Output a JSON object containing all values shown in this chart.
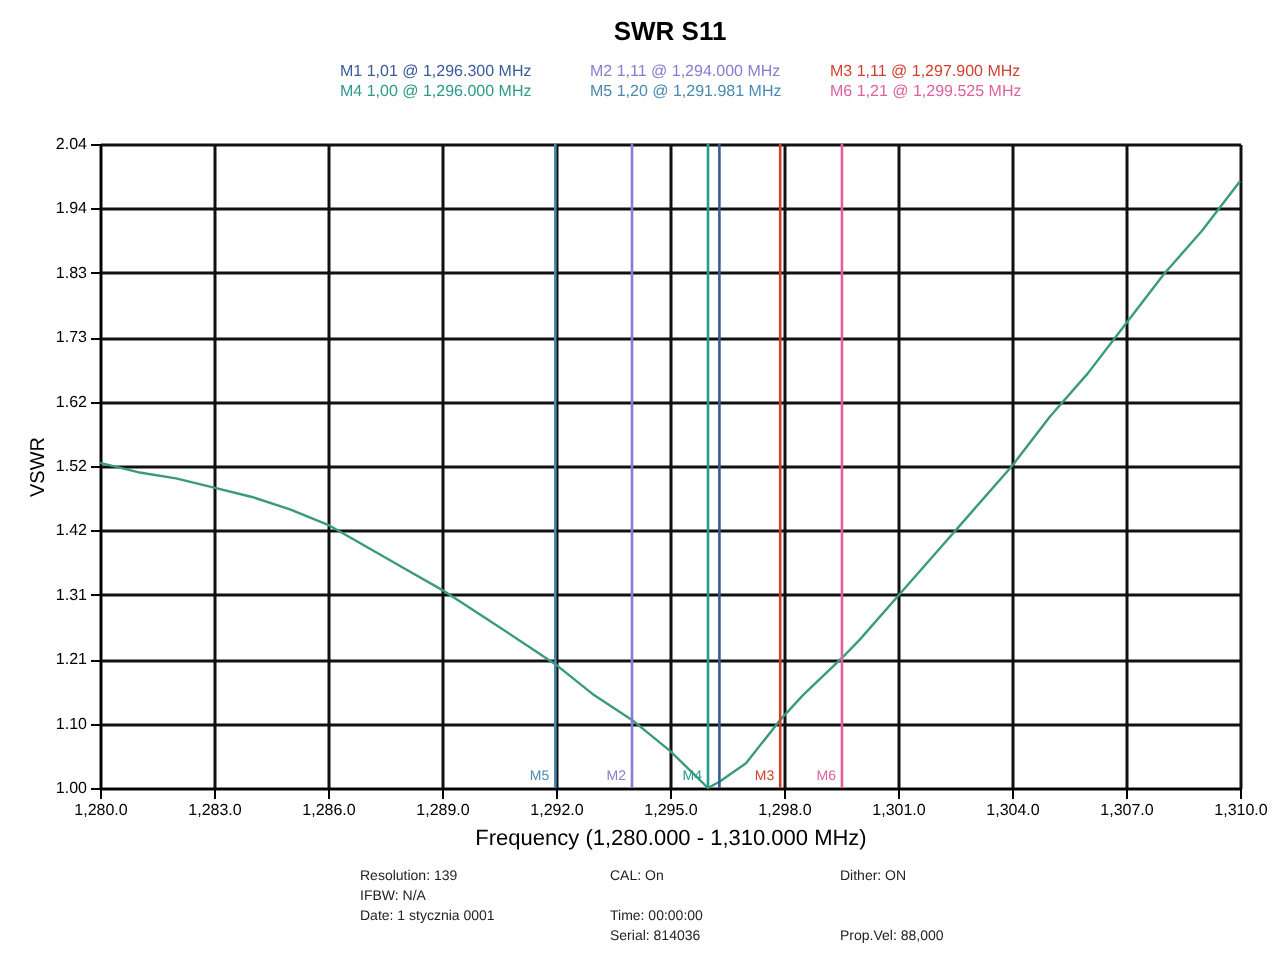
{
  "chart_data": {
    "type": "line",
    "title": "SWR S11",
    "xlabel": "Frequency (1,280.000 - 1,310.000 MHz)",
    "ylabel": "VSWR",
    "x": [
      1280,
      1281,
      1282,
      1283,
      1284,
      1285,
      1286,
      1287,
      1288,
      1289,
      1290,
      1291,
      1291.981,
      1293,
      1294,
      1295,
      1295.5,
      1296,
      1296.3,
      1297,
      1297.9,
      1298.5,
      1299.525,
      1300,
      1301,
      1302,
      1303,
      1304,
      1305,
      1306,
      1307,
      1308,
      1309,
      1310
    ],
    "series": [
      {
        "color": "#3a9a7a",
        "values": [
          1.525,
          1.51,
          1.5,
          1.485,
          1.47,
          1.45,
          1.425,
          1.39,
          1.355,
          1.32,
          1.28,
          1.24,
          1.2,
          1.15,
          1.11,
          1.06,
          1.03,
          1.0,
          1.01,
          1.04,
          1.11,
          1.15,
          1.21,
          1.24,
          1.31,
          1.38,
          1.45,
          1.52,
          1.6,
          1.67,
          1.75,
          1.83,
          1.9,
          1.98
        ]
      }
    ],
    "xlim": [
      1280,
      1310
    ],
    "ylim": [
      1.0,
      2.04
    ],
    "xticks": [
      {
        "value": 1280,
        "label": "1,280.0"
      },
      {
        "value": 1283,
        "label": "1,283.0"
      },
      {
        "value": 1286,
        "label": "1,286.0"
      },
      {
        "value": 1289,
        "label": "1,289.0"
      },
      {
        "value": 1292,
        "label": "1,292.0"
      },
      {
        "value": 1295,
        "label": "1,295.0"
      },
      {
        "value": 1298,
        "label": "1,298.0"
      },
      {
        "value": 1301,
        "label": "1,301.0"
      },
      {
        "value": 1304,
        "label": "1,304.0"
      },
      {
        "value": 1307,
        "label": "1,307.0"
      },
      {
        "value": 1310,
        "label": "1,310.0"
      }
    ],
    "yticks": [
      {
        "value": 1.0,
        "label": "1.00"
      },
      {
        "value": 1.104,
        "label": "1.10"
      },
      {
        "value": 1.208,
        "label": "1.21"
      },
      {
        "value": 1.312,
        "label": "1.31"
      },
      {
        "value": 1.416,
        "label": "1.42"
      },
      {
        "value": 1.52,
        "label": "1.52"
      },
      {
        "value": 1.624,
        "label": "1.62"
      },
      {
        "value": 1.728,
        "label": "1.73"
      },
      {
        "value": 1.832,
        "label": "1.83"
      },
      {
        "value": 1.936,
        "label": "1.94"
      },
      {
        "value": 2.04,
        "label": "2.04"
      }
    ],
    "grid": true,
    "marker": "none",
    "line_style": "solid",
    "ref_lines": [
      {
        "axis": "x",
        "value": 1296.3,
        "color": "#3a5a9a"
      },
      {
        "axis": "x",
        "value": 1294.0,
        "label": "M2",
        "color": "#8a7ad0"
      },
      {
        "axis": "x",
        "value": 1297.9,
        "label": "M3",
        "color": "#d04030"
      },
      {
        "axis": "x",
        "value": 1296.0,
        "label": "M4",
        "color": "#2a9a8a"
      },
      {
        "axis": "x",
        "value": 1291.981,
        "label": "M5",
        "color": "#4a8ab0"
      },
      {
        "axis": "x",
        "value": 1299.525,
        "label": "M6",
        "color": "#e060a0"
      }
    ],
    "annotations": [
      "M1  1,01 @ 1,296.300 MHz",
      "M2  1,11 @ 1,294.000 MHz",
      "M3  1,11 @ 1,297.900 MHz",
      "M4  1,00 @ 1,296.000 MHz",
      "M5  1,20 @ 1,291.981 MHz",
      "M6  1,21 @ 1,299.525 MHz",
      "Resolution: 139",
      "CAL: On",
      "Dither: ON",
      "IFBW: N/A",
      "Date: 1 stycznia 0001",
      "Time: 00:00:00",
      "Serial: 814036",
      "Prop.Vel: 88,000"
    ]
  }
}
